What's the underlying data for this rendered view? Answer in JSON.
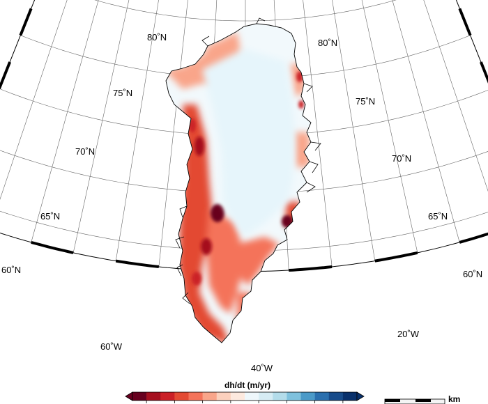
{
  "map": {
    "parallel_labels": [
      "80˚N",
      "75˚N",
      "70˚N",
      "65˚N",
      "60˚N"
    ],
    "meridian_labels": [
      "60˚W",
      "40˚W",
      "20˚W"
    ],
    "parallels_deg": [
      60,
      65,
      70,
      75,
      80,
      85
    ],
    "meridians_deg": [
      -75,
      -70,
      -65,
      -60,
      -55,
      -50,
      -45,
      -40,
      -35,
      -30,
      -25,
      -20,
      -15,
      -10,
      -5
    ]
  },
  "colorbar": {
    "title": "dh/dt (m/yr)",
    "colors": [
      "#67001f",
      "#a50f1f",
      "#cb2027",
      "#e34a33",
      "#f4735a",
      "#f9a58a",
      "#fbd0bd",
      "#fde9de",
      "#eef7fb",
      "#d6ecf4",
      "#b3dcea",
      "#7fc1dd",
      "#4b9ac8",
      "#2a6fae",
      "#174b8a",
      "#08306b"
    ],
    "tick_labels": []
  },
  "scalebar": {
    "unit_label": "km"
  },
  "colors": {
    "ice_interior": "#e6f5fb",
    "strong_thinning": "#67001f",
    "moderate_thinning": "#e34a33",
    "light_thinning": "#fbd0bd",
    "frame": "#000000",
    "graticule": "#666666"
  }
}
